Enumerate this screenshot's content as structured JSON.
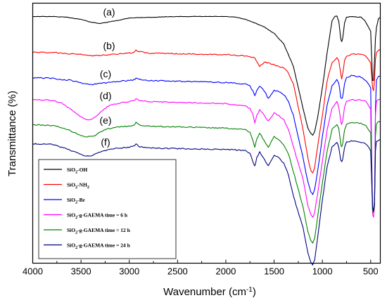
{
  "chart_data": {
    "type": "line",
    "title": "",
    "xlabel": "Wavenumber (cm",
    "xlabel_sup": "-1",
    "xlabel_end": ")",
    "ylabel": "Transmittance (%)",
    "xlim": [
      4000,
      400
    ],
    "x_reversed": true,
    "y_ticks_shown": false,
    "x_ticks": [
      "4000",
      "3500",
      "3000",
      "2500",
      "2000",
      "1500",
      "1000",
      "500"
    ],
    "x_tick_values": [
      4000,
      3500,
      3000,
      2500,
      2000,
      1500,
      1000,
      500
    ],
    "legend_position": "bottom-left",
    "grid": false,
    "series": [
      {
        "curve_label": "(a)",
        "legend_parts": [
          [
            "SiO",
            ""
          ],
          [
            "2",
            "sub"
          ],
          [
            "-OH",
            ""
          ]
        ],
        "color": "#000000",
        "x": [
          4000,
          3800,
          3650,
          3500,
          3400,
          3300,
          3100,
          3000,
          2500,
          2000,
          1900,
          1800,
          1700,
          1600,
          1500,
          1400,
          1300,
          1200,
          1150,
          1120,
          1100,
          1080,
          1050,
          1000,
          950,
          900,
          870,
          850,
          830,
          810,
          800,
          790,
          770,
          750,
          700,
          600,
          560,
          500,
          480,
          470,
          460,
          450,
          440,
          420,
          400
        ],
        "y": [
          19,
          19,
          20,
          23,
          27,
          29,
          24,
          21,
          19,
          19,
          20,
          23,
          28,
          34,
          43,
          58,
          90,
          150,
          178,
          185,
          188,
          183,
          163,
          120,
          70,
          25,
          19,
          18,
          26,
          50,
          55,
          50,
          28,
          20,
          19,
          20,
          25,
          40,
          110,
          110,
          80,
          50,
          35,
          22,
          20
        ]
      },
      {
        "curve_label": "(b)",
        "legend_parts": [
          [
            "SiO",
            ""
          ],
          [
            "2",
            "sub"
          ],
          [
            "-NH",
            ""
          ],
          [
            "2",
            "sub"
          ]
        ],
        "color": "#ff0000",
        "x": [
          4000,
          3800,
          3600,
          3500,
          3450,
          3400,
          3300,
          3200,
          3100,
          3000,
          2950,
          2930,
          2900,
          2850,
          2800,
          2500,
          2000,
          1800,
          1700,
          1650,
          1600,
          1560,
          1500,
          1450,
          1400,
          1350,
          1300,
          1200,
          1150,
          1120,
          1100,
          1080,
          1050,
          1000,
          950,
          900,
          850,
          830,
          810,
          800,
          790,
          770,
          750,
          700,
          600,
          550,
          500,
          480,
          470,
          460,
          450,
          440,
          420,
          400
        ],
        "y": [
          70,
          70,
          72,
          73,
          74,
          75,
          74,
          73,
          72,
          71,
          70,
          67,
          69,
          70,
          71,
          72,
          73,
          75,
          78,
          90,
          84,
          85,
          88,
          90,
          92,
          100,
          115,
          180,
          220,
          238,
          242,
          234,
          205,
          160,
          110,
          85,
          78,
          82,
          100,
          108,
          100,
          82,
          76,
          73,
          72,
          75,
          85,
          120,
          125,
          108,
          80,
          70,
          67,
          66
        ]
      },
      {
        "curve_label": "(c)",
        "legend_parts": [
          [
            "SiO",
            ""
          ],
          [
            "2",
            "sub"
          ],
          [
            "-Br",
            ""
          ]
        ],
        "color": "#0000ff",
        "x": [
          4000,
          3800,
          3600,
          3500,
          3450,
          3400,
          3300,
          3200,
          3100,
          3000,
          2950,
          2930,
          2900,
          2800,
          2500,
          2000,
          1800,
          1750,
          1720,
          1700,
          1680,
          1650,
          1600,
          1560,
          1500,
          1450,
          1400,
          1350,
          1300,
          1200,
          1150,
          1120,
          1100,
          1080,
          1050,
          1000,
          950,
          900,
          850,
          830,
          810,
          800,
          790,
          770,
          750,
          700,
          600,
          550,
          500,
          480,
          470,
          460,
          450,
          440,
          420,
          400
        ],
        "y": [
          106,
          107,
          110,
          113,
          115,
          116,
          114,
          113,
          111,
          110,
          109,
          107,
          108,
          110,
          111,
          113,
          115,
          118,
          125,
          132,
          124,
          118,
          125,
          136,
          124,
          126,
          130,
          140,
          160,
          220,
          255,
          268,
          272,
          265,
          240,
          190,
          145,
          118,
          108,
          114,
          134,
          136,
          134,
          114,
          106,
          103,
          105,
          110,
          120,
          295,
          298,
          285,
          150,
          110,
          105,
          104
        ]
      },
      {
        "curve_label": "(d)",
        "legend_parts": [
          [
            "SiO",
            ""
          ],
          [
            "2",
            "sub"
          ],
          [
            "-g-GAEMA time = 6 h",
            ""
          ]
        ],
        "color": "#ff00ff",
        "x": [
          4000,
          3800,
          3700,
          3600,
          3500,
          3450,
          3400,
          3350,
          3300,
          3200,
          3100,
          3000,
          2950,
          2930,
          2900,
          2800,
          2500,
          2000,
          1800,
          1750,
          1720,
          1700,
          1680,
          1650,
          1600,
          1560,
          1500,
          1450,
          1400,
          1350,
          1300,
          1200,
          1150,
          1120,
          1100,
          1080,
          1050,
          1000,
          950,
          900,
          850,
          830,
          810,
          800,
          790,
          770,
          750,
          700,
          600,
          550,
          500,
          480,
          470,
          460,
          450,
          440,
          420,
          400
        ],
        "y": [
          137,
          138,
          142,
          152,
          162,
          165,
          166,
          162,
          155,
          145,
          142,
          140,
          139,
          136,
          138,
          140,
          141,
          143,
          146,
          150,
          158,
          170,
          160,
          152,
          160,
          168,
          156,
          160,
          166,
          180,
          205,
          250,
          288,
          300,
          305,
          298,
          272,
          225,
          180,
          150,
          140,
          148,
          168,
          172,
          168,
          148,
          140,
          137,
          138,
          140,
          150,
          300,
          304,
          290,
          160,
          140,
          137,
          136
        ]
      },
      {
        "curve_label": "(e)",
        "legend_parts": [
          [
            "SiO",
            ""
          ],
          [
            "2",
            "sub"
          ],
          [
            "-g-GAEMA time = 12 h",
            ""
          ]
        ],
        "color": "#008000",
        "x": [
          4000,
          3800,
          3700,
          3600,
          3500,
          3450,
          3400,
          3350,
          3300,
          3200,
          3100,
          3000,
          2950,
          2930,
          2900,
          2800,
          2500,
          2000,
          1800,
          1750,
          1720,
          1700,
          1680,
          1650,
          1600,
          1560,
          1500,
          1450,
          1400,
          1350,
          1300,
          1200,
          1150,
          1120,
          1100,
          1080,
          1050,
          1000,
          950,
          900,
          850,
          830,
          810,
          800,
          790,
          770,
          750,
          700,
          600,
          550,
          500,
          480,
          470,
          460,
          450,
          440,
          420,
          400
        ],
        "y": [
          173,
          174,
          177,
          182,
          188,
          190,
          190,
          188,
          183,
          178,
          176,
          175,
          174,
          170,
          173,
          175,
          176,
          178,
          180,
          184,
          195,
          205,
          193,
          185,
          196,
          205,
          190,
          195,
          202,
          215,
          240,
          290,
          325,
          338,
          342,
          335,
          305,
          255,
          210,
          180,
          172,
          178,
          200,
          205,
          200,
          180,
          173,
          170,
          171,
          174,
          185,
          295,
          298,
          285,
          190,
          172,
          169,
          168
        ]
      },
      {
        "curve_label": "(f)",
        "legend_parts": [
          [
            "SiO",
            ""
          ],
          [
            "2",
            "sub"
          ],
          [
            "-g-GAEMA time = 24 h",
            ""
          ]
        ],
        "color": "#000080",
        "x": [
          4000,
          3800,
          3700,
          3600,
          3500,
          3450,
          3400,
          3350,
          3300,
          3200,
          3100,
          3000,
          2950,
          2930,
          2900,
          2800,
          2500,
          2000,
          1800,
          1750,
          1720,
          1700,
          1680,
          1650,
          1600,
          1560,
          1500,
          1450,
          1400,
          1350,
          1300,
          1200,
          1150,
          1120,
          1100,
          1080,
          1050,
          1000,
          950,
          900,
          850,
          830,
          810,
          800,
          790,
          770,
          750,
          700,
          600,
          550,
          500,
          480,
          470,
          460,
          450,
          440,
          420,
          400
        ],
        "y": [
          200,
          201,
          205,
          210,
          215,
          217,
          218,
          215,
          212,
          208,
          206,
          205,
          203,
          200,
          204,
          206,
          207,
          208,
          210,
          214,
          225,
          232,
          220,
          212,
          222,
          232,
          216,
          220,
          228,
          245,
          275,
          320,
          355,
          368,
          372,
          365,
          335,
          280,
          232,
          205,
          198,
          205,
          223,
          226,
          222,
          205,
          198,
          196,
          198,
          200,
          210,
          290,
          295,
          280,
          210,
          197,
          195,
          194
        ]
      }
    ]
  }
}
